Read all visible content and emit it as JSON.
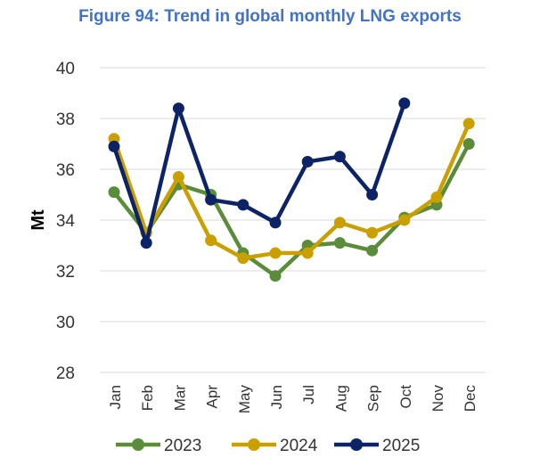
{
  "chart_data": {
    "type": "line",
    "title": "Figure 94: Trend in global monthly LNG exports",
    "xlabel": "",
    "ylabel": "Mt",
    "ylim": [
      28,
      40
    ],
    "yticks": [
      "28",
      "30",
      "32",
      "34",
      "36",
      "38",
      "40"
    ],
    "grid": true,
    "legend": "bottom",
    "categories": [
      "Jan",
      "Feb",
      "Mar",
      "Apr",
      "May",
      "Jun",
      "Jul",
      "Aug",
      "Sep",
      "Oct",
      "Nov",
      "Dec"
    ],
    "series": [
      {
        "name": "2023",
        "color": "#5b8c3a",
        "values": [
          35.1,
          33.5,
          35.4,
          35.0,
          32.7,
          31.8,
          33.0,
          33.1,
          32.8,
          34.1,
          34.6,
          37.0
        ]
      },
      {
        "name": "2024",
        "color": "#c9a000",
        "values": [
          37.2,
          33.5,
          35.7,
          33.2,
          32.5,
          32.7,
          32.7,
          33.9,
          33.5,
          34.0,
          34.9,
          37.8
        ]
      },
      {
        "name": "2025",
        "color": "#0c2466",
        "values": [
          36.9,
          33.1,
          38.4,
          34.8,
          34.6,
          33.9,
          36.3,
          36.5,
          35.0,
          38.6,
          null,
          null
        ]
      }
    ]
  }
}
